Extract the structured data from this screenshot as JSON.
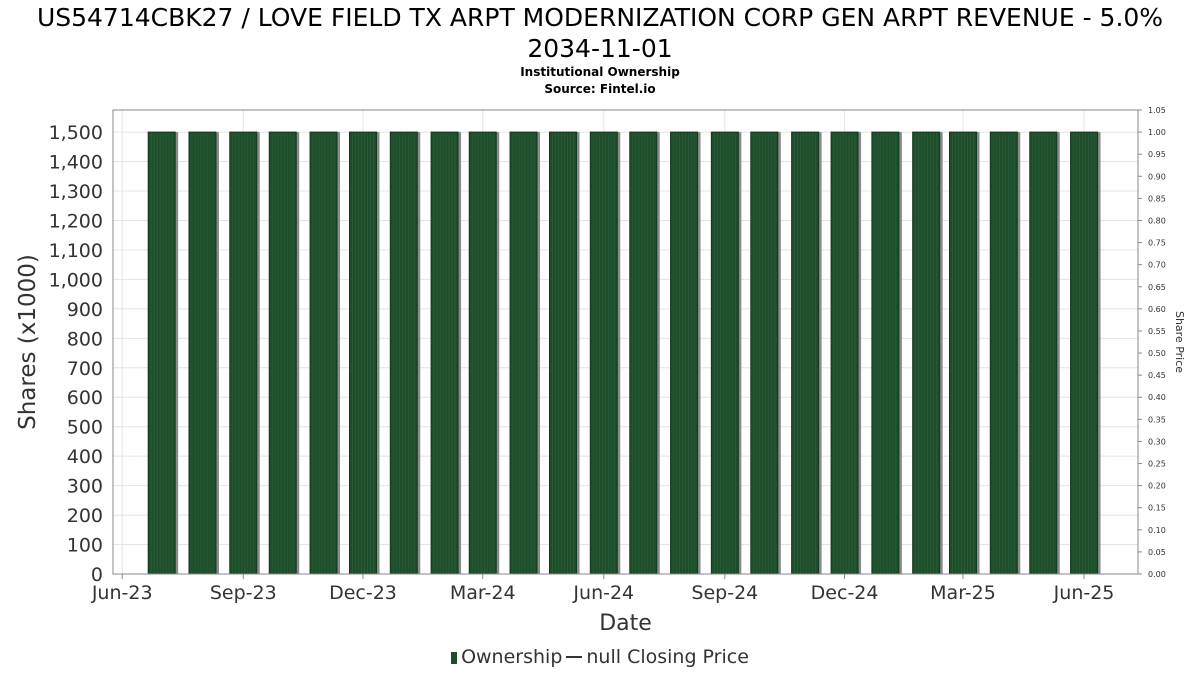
{
  "header": {
    "title": "US54714CBK27 / LOVE FIELD TX ARPT MODERNIZATION CORP GEN ARPT REVENUE - 5.0% 2034-11-01",
    "subtitle": "Institutional Ownership",
    "source": "Source: Fintel.io"
  },
  "legend": {
    "ownership_label": "Ownership",
    "price_label": "null Closing Price"
  },
  "colors": {
    "bar_fill": "#1f4d2c",
    "bar_shadow": "#8a8a8a",
    "grid": "#e4e4e4",
    "axis": "#888888"
  },
  "chart_data": {
    "type": "bar",
    "title": "US54714CBK27 / LOVE FIELD TX ARPT MODERNIZATION CORP GEN ARPT REVENUE - 5.0% 2034-11-01",
    "xlabel": "Date",
    "ylabel": "Shares (x1000)",
    "y2label": "Share Price",
    "ylim": [
      0,
      1575
    ],
    "y2lim": [
      0,
      1.05
    ],
    "grid": true,
    "legend_position": "bottom",
    "yticks": [
      "0",
      "100",
      "200",
      "300",
      "400",
      "500",
      "600",
      "700",
      "800",
      "900",
      "1,000",
      "1,100",
      "1,200",
      "1,300",
      "1,400",
      "1,500"
    ],
    "y2ticks": [
      "0.00",
      "0.05",
      "0.10",
      "0.15",
      "0.20",
      "0.25",
      "0.30",
      "0.35",
      "0.40",
      "0.45",
      "0.50",
      "0.55",
      "0.60",
      "0.65",
      "0.70",
      "0.75",
      "0.80",
      "0.85",
      "0.90",
      "0.95",
      "1.00",
      "1.05"
    ],
    "xticks": [
      {
        "label": "Jun-23",
        "date": "2023-06-01"
      },
      {
        "label": "Sep-23",
        "date": "2023-09-01"
      },
      {
        "label": "Dec-23",
        "date": "2023-12-01"
      },
      {
        "label": "Mar-24",
        "date": "2024-03-01"
      },
      {
        "label": "Jun-24",
        "date": "2024-06-01"
      },
      {
        "label": "Sep-24",
        "date": "2024-09-01"
      },
      {
        "label": "Dec-24",
        "date": "2024-12-01"
      },
      {
        "label": "Mar-25",
        "date": "2025-03-01"
      },
      {
        "label": "Jun-25",
        "date": "2025-06-01"
      }
    ],
    "x_range": [
      "2023-05-25",
      "2025-07-12"
    ],
    "series": [
      {
        "name": "Ownership",
        "x": [
          "2023-07-01",
          "2023-08-01",
          "2023-09-01",
          "2023-10-01",
          "2023-11-01",
          "2023-12-01",
          "2024-01-01",
          "2024-02-01",
          "2024-03-01",
          "2024-04-01",
          "2024-05-01",
          "2024-06-01",
          "2024-07-01",
          "2024-08-01",
          "2024-09-01",
          "2024-10-01",
          "2024-11-01",
          "2024-12-01",
          "2025-01-01",
          "2025-02-01",
          "2025-03-01",
          "2025-04-01",
          "2025-05-01",
          "2025-06-01"
        ],
        "values": [
          1500,
          1500,
          1500,
          1500,
          1500,
          1500,
          1500,
          1500,
          1500,
          1500,
          1500,
          1500,
          1500,
          1500,
          1500,
          1500,
          1500,
          1500,
          1500,
          1500,
          1500,
          1500,
          1500,
          1500
        ]
      }
    ]
  }
}
